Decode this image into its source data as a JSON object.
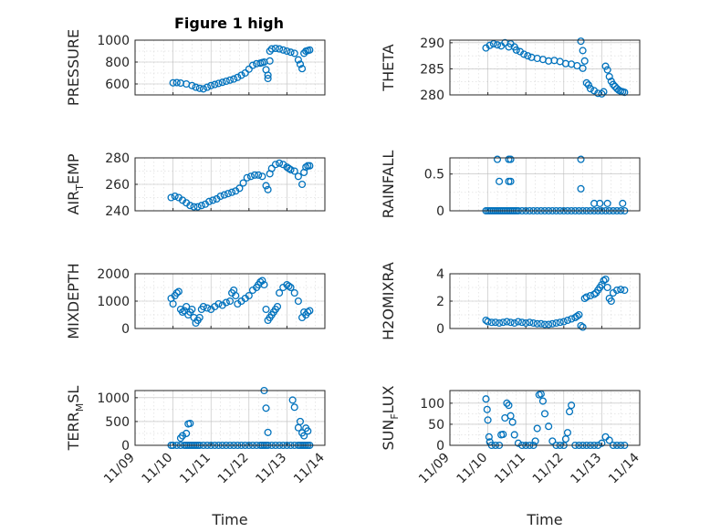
{
  "figure": {
    "title": "Figure 1 high"
  },
  "chart_data": [
    {
      "type": "scatter",
      "ylabel": "PRESSURE",
      "ylabel_sub": "",
      "ylabel_suffix": "",
      "yticks": [
        "600",
        "800",
        "1000"
      ],
      "ytick_values": [
        600,
        800,
        1000
      ],
      "ylim": [
        500,
        1000
      ],
      "xlim": [
        "11/09",
        "11/14"
      ],
      "grid": true,
      "marker_color": "#0072BD",
      "x": [
        1.0,
        1.1,
        1.2,
        1.35,
        1.5,
        1.6,
        1.7,
        1.8,
        1.9,
        2.0,
        2.1,
        2.2,
        2.3,
        2.4,
        2.5,
        2.6,
        2.7,
        2.8,
        2.9,
        3.0,
        3.1,
        3.2,
        3.3,
        3.35,
        3.4,
        3.45,
        3.5,
        3.55,
        3.5,
        3.55,
        3.6,
        3.7,
        3.8,
        3.9,
        4.0,
        4.1,
        4.2,
        4.3,
        4.35,
        4.4,
        4.45,
        4.5,
        4.55,
        4.6
      ],
      "y": [
        610,
        612,
        608,
        600,
        585,
        570,
        560,
        555,
        570,
        585,
        595,
        605,
        615,
        625,
        635,
        645,
        660,
        680,
        700,
        735,
        770,
        785,
        790,
        795,
        800,
        730,
        680,
        810,
        650,
        900,
        920,
        925,
        920,
        910,
        900,
        890,
        880,
        820,
        780,
        740,
        880,
        900,
        905,
        910
      ]
    },
    {
      "type": "scatter",
      "ylabel": "THETA",
      "ylabel_sub": "",
      "ylabel_suffix": "",
      "yticks": [
        "280",
        "285",
        "290"
      ],
      "ytick_values": [
        280,
        285,
        290
      ],
      "ylim": [
        280,
        290.5
      ],
      "xlim": [
        "11/09",
        "11/14"
      ],
      "grid": true,
      "marker_color": "#0072BD",
      "x": [
        0.95,
        1.05,
        1.15,
        1.25,
        1.35,
        1.45,
        1.55,
        1.6,
        1.7,
        1.75,
        1.85,
        1.95,
        2.05,
        2.15,
        2.3,
        2.45,
        2.6,
        2.75,
        2.9,
        3.05,
        3.2,
        3.35,
        3.5,
        3.45,
        3.5,
        3.55,
        3.6,
        3.65,
        3.7,
        3.8,
        3.9,
        4.0,
        4.05,
        4.1,
        4.15,
        4.2,
        4.25,
        4.3,
        4.35,
        4.4,
        4.45,
        4.5,
        4.55,
        4.6
      ],
      "y": [
        289,
        289.5,
        289.8,
        289.6,
        289.4,
        290,
        289.2,
        289.8,
        289.2,
        288.6,
        288.3,
        287.8,
        287.5,
        287.2,
        287.0,
        286.8,
        286.5,
        286.6,
        286.4,
        286.0,
        285.9,
        285.6,
        285.1,
        290.3,
        288.5,
        286.5,
        282.3,
        281.9,
        281.2,
        280.8,
        280.3,
        280.2,
        280.6,
        285.5,
        284.8,
        283.5,
        282.6,
        282.0,
        281.6,
        281.2,
        280.9,
        280.7,
        280.6,
        280.5
      ]
    },
    {
      "type": "scatter",
      "ylabel": "AIR",
      "ylabel_sub": "T",
      "ylabel_suffix": "EMP",
      "yticks": [
        "240",
        "260",
        "280"
      ],
      "ytick_values": [
        240,
        260,
        280
      ],
      "ylim": [
        240,
        280
      ],
      "xlim": [
        "11/09",
        "11/14"
      ],
      "grid": true,
      "marker_color": "#0072BD",
      "x": [
        0.95,
        1.05,
        1.15,
        1.25,
        1.35,
        1.45,
        1.55,
        1.65,
        1.75,
        1.85,
        1.95,
        2.05,
        2.15,
        2.25,
        2.35,
        2.45,
        2.55,
        2.65,
        2.75,
        2.85,
        2.95,
        3.05,
        3.15,
        3.25,
        3.35,
        3.45,
        3.5,
        3.55,
        3.6,
        3.7,
        3.8,
        3.9,
        4.0,
        4.05,
        4.1,
        4.2,
        4.3,
        4.4,
        4.45,
        4.5,
        4.55,
        4.6
      ],
      "y": [
        250,
        251,
        250,
        248,
        246,
        244,
        243,
        243,
        244,
        245,
        247,
        248,
        249,
        251,
        252,
        253,
        254,
        255,
        257,
        261,
        265,
        266,
        267,
        267,
        266,
        259,
        256,
        268,
        272,
        275,
        276,
        275,
        273,
        272,
        271,
        270,
        266,
        260,
        269,
        273,
        274,
        274
      ]
    },
    {
      "type": "scatter",
      "ylabel": "RAINFALL",
      "ylabel_sub": "",
      "ylabel_suffix": "",
      "yticks": [
        "0",
        "0.5"
      ],
      "ytick_values": [
        0,
        0.5
      ],
      "ylim": [
        0,
        0.72
      ],
      "xlim": [
        "11/09",
        "11/14"
      ],
      "grid": true,
      "marker_color": "#0072BD",
      "x": [
        0.95,
        1.0,
        1.05,
        1.1,
        1.15,
        1.2,
        1.25,
        1.3,
        1.35,
        1.4,
        1.45,
        1.5,
        1.55,
        1.6,
        1.65,
        1.7,
        1.75,
        1.8,
        1.9,
        2.0,
        2.1,
        2.2,
        2.3,
        2.4,
        2.5,
        2.6,
        2.7,
        2.8,
        2.9,
        3.0,
        3.1,
        3.2,
        3.3,
        3.4,
        3.5,
        3.6,
        3.7,
        3.8,
        3.9,
        4.0,
        4.1,
        4.2,
        4.3,
        4.4,
        4.5,
        4.6,
        1.25,
        1.3,
        1.55,
        1.6,
        1.55,
        1.6,
        3.45,
        3.45,
        3.8,
        3.95,
        4.15,
        4.55
      ],
      "y": [
        0,
        0,
        0,
        0,
        0,
        0,
        0,
        0,
        0,
        0,
        0,
        0,
        0,
        0,
        0,
        0,
        0,
        0,
        0,
        0,
        0,
        0,
        0,
        0,
        0,
        0,
        0,
        0,
        0,
        0,
        0,
        0,
        0,
        0,
        0,
        0,
        0,
        0,
        0,
        0,
        0,
        0,
        0,
        0,
        0,
        0,
        0.7,
        0.4,
        0.7,
        0.7,
        0.4,
        0.4,
        0.7,
        0.3,
        0.1,
        0.1,
        0.1,
        0.1
      ]
    },
    {
      "type": "scatter",
      "ylabel": "MIXDEPTH",
      "ylabel_sub": "",
      "ylabel_suffix": "",
      "yticks": [
        "0",
        "1000",
        "2000"
      ],
      "ytick_values": [
        0,
        1000,
        2000
      ],
      "ylim": [
        0,
        2000
      ],
      "xlim": [
        "11/09",
        "11/14"
      ],
      "grid": true,
      "marker_color": "#0072BD",
      "x": [
        0.95,
        1.0,
        1.05,
        1.1,
        1.15,
        1.2,
        1.25,
        1.3,
        1.35,
        1.4,
        1.45,
        1.5,
        1.55,
        1.6,
        1.65,
        1.7,
        1.75,
        1.8,
        1.9,
        2.0,
        2.1,
        2.2,
        2.3,
        2.4,
        2.5,
        2.55,
        2.6,
        2.65,
        2.7,
        2.8,
        2.9,
        3.0,
        3.1,
        3.2,
        3.25,
        3.3,
        3.35,
        3.4,
        3.45,
        3.5,
        3.55,
        3.6,
        3.65,
        3.7,
        3.75,
        3.8,
        3.9,
        4.0,
        4.05,
        4.1,
        4.2,
        4.3,
        4.4,
        4.45,
        4.5,
        4.55,
        4.6
      ],
      "y": [
        1100,
        900,
        1200,
        1300,
        1350,
        700,
        600,
        650,
        800,
        500,
        600,
        700,
        400,
        200,
        300,
        400,
        700,
        800,
        750,
        700,
        800,
        900,
        850,
        950,
        1000,
        1300,
        1400,
        1200,
        900,
        1000,
        1100,
        1200,
        1400,
        1500,
        1600,
        1700,
        1750,
        1600,
        700,
        300,
        400,
        500,
        600,
        700,
        800,
        1300,
        1500,
        1600,
        1550,
        1500,
        1300,
        1000,
        400,
        600,
        500,
        600,
        650
      ]
    },
    {
      "type": "scatter",
      "ylabel": "H2OMIXRA",
      "ylabel_sub": "",
      "ylabel_suffix": "",
      "yticks": [
        "0",
        "2",
        "4"
      ],
      "ytick_values": [
        0,
        2,
        4
      ],
      "ylim": [
        0,
        4
      ],
      "xlim": [
        "11/09",
        "11/14"
      ],
      "grid": true,
      "marker_color": "#0072BD",
      "x": [
        0.95,
        1.0,
        1.1,
        1.2,
        1.3,
        1.4,
        1.5,
        1.6,
        1.7,
        1.8,
        1.9,
        2.0,
        2.1,
        2.2,
        2.3,
        2.4,
        2.5,
        2.6,
        2.7,
        2.8,
        2.9,
        3.0,
        3.1,
        3.2,
        3.3,
        3.35,
        3.4,
        3.45,
        3.5,
        3.55,
        3.6,
        3.7,
        3.8,
        3.85,
        3.9,
        3.95,
        4.0,
        4.05,
        4.1,
        4.15,
        4.2,
        4.25,
        4.3,
        4.4,
        4.5,
        4.6
      ],
      "y": [
        0.6,
        0.5,
        0.45,
        0.45,
        0.4,
        0.45,
        0.5,
        0.45,
        0.4,
        0.5,
        0.45,
        0.4,
        0.45,
        0.4,
        0.35,
        0.35,
        0.3,
        0.3,
        0.35,
        0.4,
        0.45,
        0.5,
        0.6,
        0.7,
        0.8,
        0.9,
        1.0,
        0.2,
        0.1,
        2.2,
        2.3,
        2.4,
        2.5,
        2.6,
        2.8,
        3.0,
        3.2,
        3.5,
        3.6,
        3.0,
        2.2,
        2.0,
        2.6,
        2.8,
        2.85,
        2.8
      ]
    },
    {
      "type": "scatter",
      "ylabel": "TERR",
      "ylabel_sub": "M",
      "ylabel_suffix": "SL",
      "yticks": [
        "0",
        "500",
        "1000"
      ],
      "ytick_values": [
        0,
        500,
        1000
      ],
      "ylim": [
        0,
        1150
      ],
      "xlim": [
        "11/09",
        "11/14"
      ],
      "grid": true,
      "marker_color": "#0072BD",
      "x": [
        0.95,
        1.0,
        1.1,
        1.2,
        1.3,
        1.35,
        1.4,
        1.45,
        1.5,
        1.55,
        1.6,
        1.65,
        1.7,
        1.8,
        1.9,
        2.0,
        2.1,
        2.2,
        2.3,
        2.4,
        2.5,
        2.6,
        2.7,
        2.8,
        2.9,
        3.0,
        3.1,
        3.2,
        3.3,
        3.35,
        3.4,
        3.45,
        3.5,
        3.6,
        3.7,
        3.8,
        3.9,
        4.0,
        4.1,
        4.2,
        4.3,
        4.35,
        4.4,
        4.45,
        4.5,
        4.55,
        4.6,
        1.2,
        1.25,
        1.35,
        1.4,
        1.45,
        3.4,
        3.45,
        3.5,
        4.15,
        4.2,
        4.3,
        4.35,
        4.4,
        4.45,
        4.5,
        4.55
      ],
      "y": [
        0,
        0,
        0,
        0,
        0,
        0,
        0,
        0,
        0,
        0,
        0,
        0,
        0,
        0,
        0,
        0,
        0,
        0,
        0,
        0,
        0,
        0,
        0,
        0,
        0,
        0,
        0,
        0,
        0,
        0,
        0,
        0,
        0,
        0,
        0,
        0,
        0,
        0,
        0,
        0,
        0,
        0,
        0,
        0,
        0,
        0,
        0,
        150,
        200,
        250,
        450,
        460,
        1150,
        780,
        270,
        950,
        800,
        370,
        500,
        260,
        200,
        360,
        300
      ]
    },
    {
      "type": "scatter",
      "ylabel": "SUN",
      "ylabel_sub": "F",
      "ylabel_suffix": "LUX",
      "yticks": [
        "0",
        "50",
        "100"
      ],
      "ytick_values": [
        0,
        50,
        100
      ],
      "ylim": [
        0,
        130
      ],
      "xlim": [
        "11/09",
        "11/14"
      ],
      "grid": true,
      "marker_color": "#0072BD",
      "x": [
        0.95,
        0.98,
        1.0,
        1.03,
        1.05,
        1.1,
        1.2,
        1.3,
        1.35,
        1.4,
        1.45,
        1.5,
        1.55,
        1.6,
        1.65,
        1.7,
        1.8,
        1.9,
        2.0,
        2.1,
        2.2,
        2.25,
        2.3,
        2.35,
        2.4,
        2.45,
        2.5,
        2.6,
        2.7,
        2.8,
        2.9,
        3.0,
        3.05,
        3.1,
        3.15,
        3.2,
        3.3,
        3.4,
        3.5,
        3.6,
        3.7,
        3.8,
        3.9,
        4.0,
        4.1,
        4.2,
        4.3,
        4.4,
        4.5,
        4.6
      ],
      "y": [
        110,
        85,
        60,
        20,
        8,
        0,
        0,
        0,
        25,
        26,
        65,
        100,
        95,
        70,
        55,
        25,
        5,
        0,
        0,
        0,
        0,
        10,
        40,
        120,
        122,
        105,
        75,
        45,
        10,
        0,
        0,
        0,
        15,
        30,
        80,
        95,
        0,
        0,
        0,
        0,
        0,
        0,
        0,
        5,
        20,
        12,
        0,
        0,
        0,
        0
      ]
    }
  ],
  "xaxis": {
    "tick_labels": [
      "11/09",
      "11/10",
      "11/11",
      "11/12",
      "11/13",
      "11/14"
    ],
    "label": "Time"
  }
}
